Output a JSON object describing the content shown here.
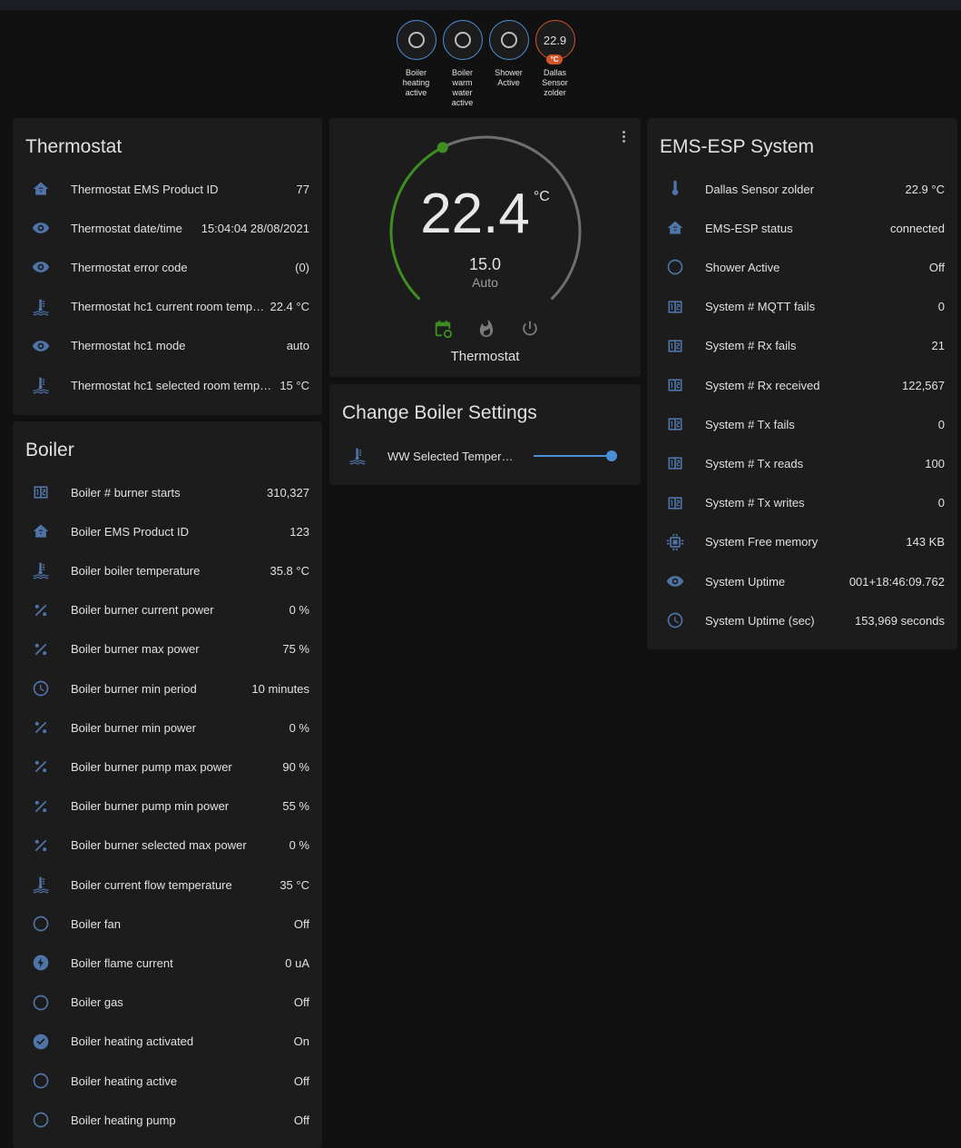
{
  "badges": [
    {
      "label": "Boiler heating active",
      "icon": "circle-outline-icon"
    },
    {
      "label": "Boiler warm water active",
      "icon": "circle-outline-icon"
    },
    {
      "label": "Shower Active",
      "icon": "circle-outline-icon"
    },
    {
      "label": "Dallas Sensor zolder",
      "value": "22.9",
      "unit": "°C"
    }
  ],
  "colors": {
    "accent": "#4a90d9",
    "sensor": "#d2542a",
    "heat": "#3e8e21",
    "icon": "#4f74a8",
    "card": "#1c1c1c",
    "bg": "#111111"
  },
  "thermostat_card": {
    "title": "Thermostat",
    "rows": [
      {
        "icon": "home-icon",
        "name": "Thermostat EMS Product ID",
        "value": "77"
      },
      {
        "icon": "eye-icon",
        "name": "Thermostat date/time",
        "value": "15:04:04 28/08/2021"
      },
      {
        "icon": "eye-icon",
        "name": "Thermostat error code",
        "value": "(0)"
      },
      {
        "icon": "water-thermometer-icon",
        "name": "Thermostat hc1 current room temper...",
        "value": "22.4 °C"
      },
      {
        "icon": "eye-icon",
        "name": "Thermostat hc1 mode",
        "value": "auto"
      },
      {
        "icon": "water-thermometer-icon",
        "name": "Thermostat hc1 selected room temper...",
        "value": "15 °C"
      }
    ]
  },
  "climate": {
    "current": "22.4",
    "unit": "°C",
    "target": "15.0",
    "target_value": 15,
    "mode": "Auto",
    "name": "Thermostat",
    "modes": [
      "auto-icon",
      "heat-icon",
      "off-icon"
    ]
  },
  "boiler_settings": {
    "title": "Change Boiler Settings",
    "rows": [
      {
        "icon": "water-thermometer-icon",
        "name": "WW Selected Temperat...",
        "slider_fraction": 1.0
      }
    ]
  },
  "boiler_card": {
    "title": "Boiler",
    "rows": [
      {
        "icon": "counter-icon",
        "name": "Boiler # burner starts",
        "value": "310,327"
      },
      {
        "icon": "home-icon",
        "name": "Boiler EMS Product ID",
        "value": "123"
      },
      {
        "icon": "water-thermometer-icon",
        "name": "Boiler boiler temperature",
        "value": "35.8 °C"
      },
      {
        "icon": "percent-icon",
        "name": "Boiler burner current power",
        "value": "0 %"
      },
      {
        "icon": "percent-icon",
        "name": "Boiler burner max power",
        "value": "75 %"
      },
      {
        "icon": "clock-icon",
        "name": "Boiler burner min period",
        "value": "10 minutes"
      },
      {
        "icon": "percent-icon",
        "name": "Boiler burner min power",
        "value": "0 %"
      },
      {
        "icon": "percent-icon",
        "name": "Boiler burner pump max power",
        "value": "90 %"
      },
      {
        "icon": "percent-icon",
        "name": "Boiler burner pump min power",
        "value": "55 %"
      },
      {
        "icon": "percent-icon",
        "name": "Boiler burner selected max power",
        "value": "0 %"
      },
      {
        "icon": "water-thermometer-icon",
        "name": "Boiler current flow temperature",
        "value": "35 °C"
      },
      {
        "icon": "circle-outline-icon",
        "name": "Boiler fan",
        "value": "Off"
      },
      {
        "icon": "flash-icon",
        "name": "Boiler flame current",
        "value": "0 uA"
      },
      {
        "icon": "circle-outline-icon",
        "name": "Boiler gas",
        "value": "Off"
      },
      {
        "icon": "check-circle-icon",
        "name": "Boiler heating activated",
        "value": "On"
      },
      {
        "icon": "circle-outline-icon",
        "name": "Boiler heating active",
        "value": "Off"
      },
      {
        "icon": "circle-outline-icon",
        "name": "Boiler heating pump",
        "value": "Off"
      }
    ]
  },
  "ems_card": {
    "title": "EMS-ESP System",
    "rows": [
      {
        "icon": "thermometer-icon",
        "name": "Dallas Sensor zolder",
        "value": "22.9 °C"
      },
      {
        "icon": "home-icon",
        "name": "EMS-ESP status",
        "value": "connected"
      },
      {
        "icon": "circle-outline-icon",
        "name": "Shower Active",
        "value": "Off"
      },
      {
        "icon": "counter-icon",
        "name": "System # MQTT fails",
        "value": "0"
      },
      {
        "icon": "counter-icon",
        "name": "System # Rx fails",
        "value": "21"
      },
      {
        "icon": "counter-icon",
        "name": "System # Rx received",
        "value": "122,567"
      },
      {
        "icon": "counter-icon",
        "name": "System # Tx fails",
        "value": "0"
      },
      {
        "icon": "counter-icon",
        "name": "System # Tx reads",
        "value": "100"
      },
      {
        "icon": "counter-icon",
        "name": "System # Tx writes",
        "value": "0"
      },
      {
        "icon": "chip-icon",
        "name": "System Free memory",
        "value": "143 KB"
      },
      {
        "icon": "eye-icon",
        "name": "System Uptime",
        "value": "001+18:46:09.762"
      },
      {
        "icon": "clock-icon",
        "name": "System Uptime (sec)",
        "value": "153,969 seconds"
      }
    ]
  }
}
